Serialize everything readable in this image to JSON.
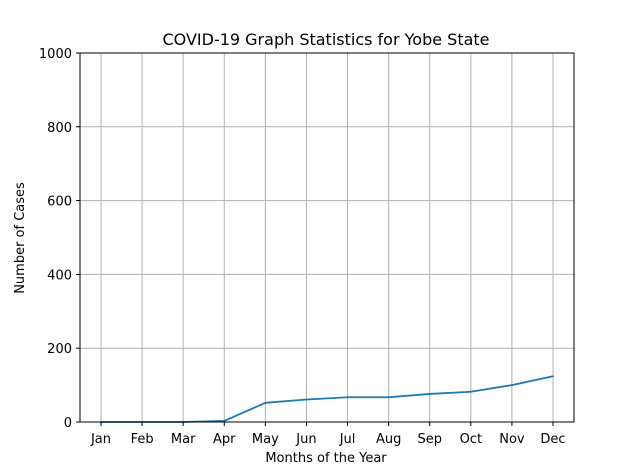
{
  "chart_data": {
    "type": "line",
    "title": "COVID-19 Graph Statistics for Yobe State",
    "xlabel": "Months of the Year",
    "ylabel": "Number of Cases",
    "categories": [
      "Jan",
      "Feb",
      "Mar",
      "Apr",
      "May",
      "Jun",
      "Jul",
      "Aug",
      "Sep",
      "Oct",
      "Nov",
      "Dec"
    ],
    "series": [
      {
        "values": [
          0,
          0,
          0,
          3,
          52,
          61,
          67,
          67,
          76,
          82,
          100,
          124
        ],
        "color": "#1f77b4"
      }
    ],
    "ylim": [
      0,
      1000
    ],
    "yticks": [
      0,
      200,
      400,
      600,
      800,
      1000
    ],
    "grid": true,
    "legend": "none"
  }
}
